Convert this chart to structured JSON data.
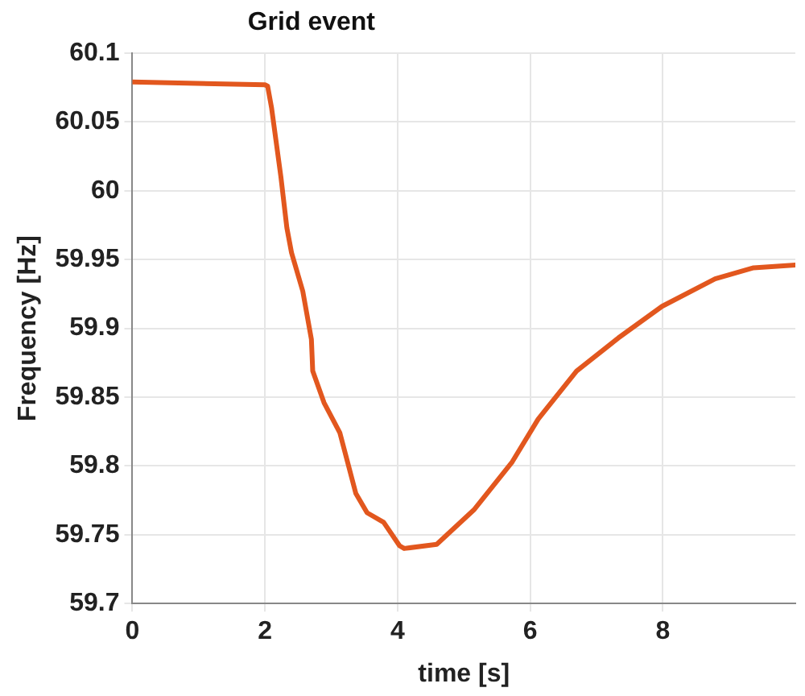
{
  "chart_data": {
    "type": "line",
    "title": "Grid event",
    "xlabel": "time [s]",
    "ylabel": "Frequency [Hz]",
    "xlim": [
      0,
      10
    ],
    "xticks": [
      0,
      2,
      4,
      6,
      8
    ],
    "ylim": [
      59.7,
      60.1
    ],
    "yticks": [
      59.7,
      59.75,
      59.8,
      59.85,
      59.9,
      59.95,
      60,
      60.05,
      60.1
    ],
    "grid": true,
    "marker": "none",
    "line_style": "solid",
    "series": [
      {
        "color": "#e2571e",
        "x": [
          0,
          2.0,
          2.04,
          2.1,
          2.24,
          2.33,
          2.4,
          2.57,
          2.7,
          2.72,
          2.89,
          3.13,
          3.37,
          3.54,
          3.79,
          4.03,
          4.1,
          4.59,
          5.15,
          5.73,
          6.12,
          6.7,
          7.33,
          7.99,
          8.79,
          9.37,
          10
        ],
        "values": [
          60.079,
          60.077,
          60.076,
          60.06,
          60.01,
          59.973,
          59.955,
          59.927,
          59.892,
          59.869,
          59.846,
          59.824,
          59.78,
          59.766,
          59.759,
          59.742,
          59.74,
          59.743,
          59.768,
          59.803,
          59.834,
          59.869,
          59.893,
          59.916,
          59.936,
          59.944,
          59.946
        ]
      }
    ]
  }
}
